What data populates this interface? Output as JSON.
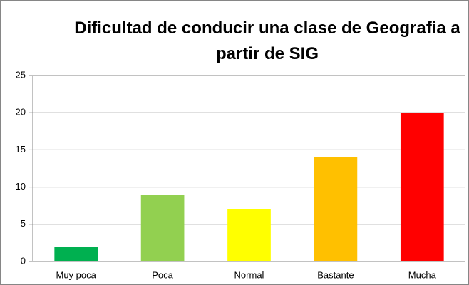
{
  "chart_data": {
    "type": "bar",
    "title": "Dificultad de conducir una clase de Geografia a partir de SIG",
    "categories": [
      "Muy poca",
      "Poca",
      "Normal",
      "Bastante",
      "Mucha"
    ],
    "values": [
      2,
      9,
      7,
      14,
      20
    ],
    "colors": [
      "#00b050",
      "#92d050",
      "#ffff00",
      "#ffc000",
      "#ff0000"
    ],
    "ylim": [
      0,
      25
    ],
    "yticks": [
      0,
      5,
      10,
      15,
      20,
      25
    ],
    "grid": true
  }
}
